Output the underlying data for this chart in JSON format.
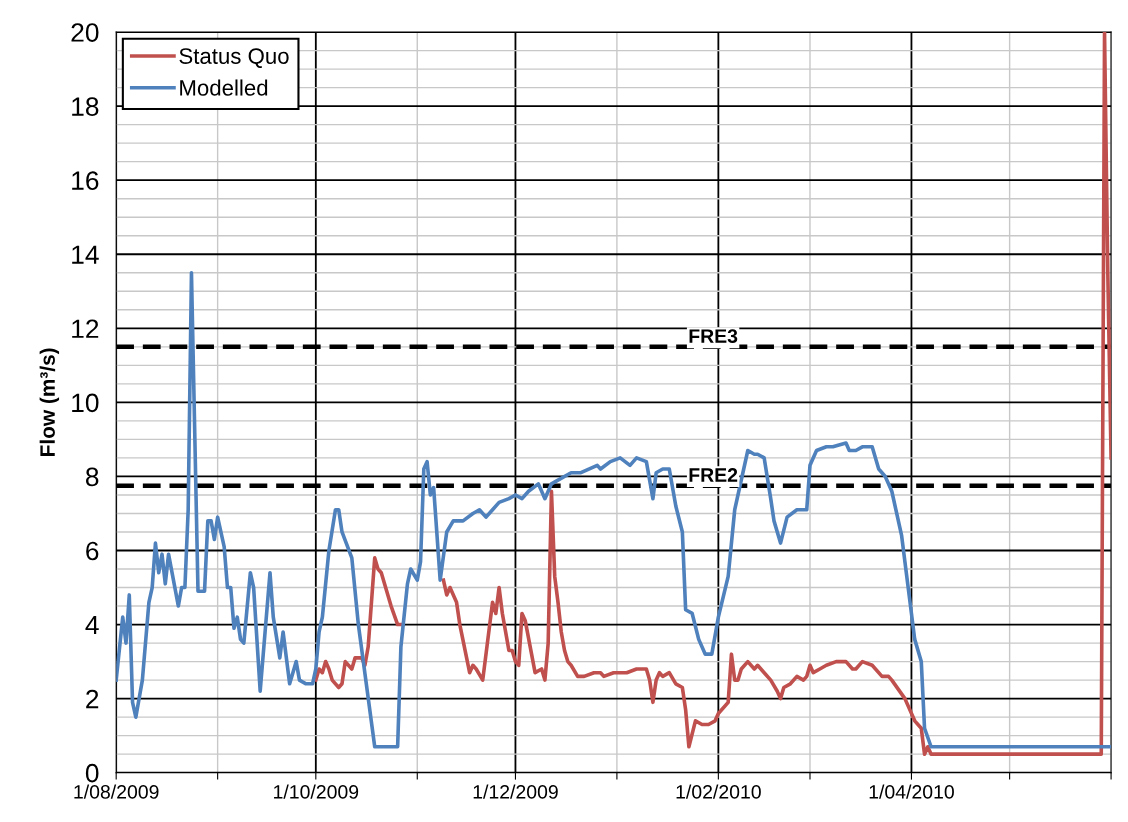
{
  "chart_data": {
    "type": "line",
    "ylabel": "Flow (m³/s)",
    "legend": "top left",
    "grid": true,
    "line_style": "solid",
    "marker": "none",
    "xlim": [
      "2009-08-01",
      "2010-06-01"
    ],
    "xticks": [
      {
        "value": "2009-08-01",
        "label": "1/08/2009"
      },
      {
        "value": "2009-09-01",
        "label": null
      },
      {
        "value": "2009-10-01",
        "label": "1/10/2009"
      },
      {
        "value": "2009-11-01",
        "label": null
      },
      {
        "value": "2009-12-01",
        "label": "1/12/2009"
      },
      {
        "value": "2010-01-01",
        "label": null
      },
      {
        "value": "2010-02-01",
        "label": "1/02/2010"
      },
      {
        "value": "2010-03-01",
        "label": null
      },
      {
        "value": "2010-04-01",
        "label": "1/04/2010"
      },
      {
        "value": "2010-05-01",
        "label": null
      },
      {
        "value": "2010-06-01",
        "label": null
      }
    ],
    "ylim": [
      0,
      20
    ],
    "yticks": [
      0,
      {
        "value": 0.5,
        "label": null
      },
      {
        "value": 1,
        "label": null
      },
      {
        "value": 1.5,
        "label": null
      },
      2,
      {
        "value": 2.5,
        "label": null
      },
      {
        "value": 3,
        "label": null
      },
      {
        "value": 3.5,
        "label": null
      },
      4,
      {
        "value": 4.5,
        "label": null
      },
      {
        "value": 5,
        "label": null
      },
      {
        "value": 5.5,
        "label": null
      },
      6,
      {
        "value": 6.5,
        "label": null
      },
      {
        "value": 7,
        "label": null
      },
      {
        "value": 7.5,
        "label": null
      },
      8,
      {
        "value": 8.5,
        "label": null
      },
      {
        "value": 9,
        "label": null
      },
      {
        "value": 9.5,
        "label": null
      },
      10,
      {
        "value": 10.5,
        "label": null
      },
      {
        "value": 11,
        "label": null
      },
      {
        "value": 11.5,
        "label": null
      },
      12,
      {
        "value": 12.5,
        "label": null
      },
      {
        "value": 13,
        "label": null
      },
      {
        "value": 13.5,
        "label": null
      },
      14,
      {
        "value": 14.5,
        "label": null
      },
      {
        "value": 15,
        "label": null
      },
      {
        "value": 15.5,
        "label": null
      },
      16,
      {
        "value": 16.5,
        "label": null
      },
      {
        "value": 17,
        "label": null
      },
      {
        "value": 17.5,
        "label": null
      },
      18,
      {
        "value": 18.5,
        "label": null
      },
      {
        "value": 19,
        "label": null
      },
      {
        "value": 19.5,
        "label": null
      },
      20
    ],
    "ref_lines": [
      {
        "axis": "y",
        "value": 11.5,
        "label": "FRE3",
        "color": "#000000",
        "line_style": "dashed"
      },
      {
        "axis": "y",
        "value": 7.75,
        "label": "FRE2",
        "color": "#000000",
        "line_style": "dashed"
      }
    ],
    "series": [
      {
        "name": "Status Quo",
        "color": "#c0504d",
        "x": [
          "2009-10-01",
          "2009-10-02",
          "2009-10-03",
          "2009-10-04",
          "2009-10-05",
          "2009-10-06",
          "2009-10-08",
          "2009-10-09",
          "2009-10-10",
          "2009-10-12",
          "2009-10-13",
          "2009-10-15",
          "2009-10-16",
          "2009-10-17",
          "2009-10-19",
          "2009-10-20",
          "2009-10-21",
          "2009-10-24",
          "2009-10-26",
          "2009-10-27",
          "2009-10-28",
          "2009-11-09",
          "2009-11-10",
          "2009-11-11",
          "2009-11-13",
          "2009-11-14",
          "2009-11-17",
          "2009-11-18",
          "2009-11-19",
          "2009-11-21",
          "2009-11-24",
          "2009-11-25",
          "2009-11-26",
          "2009-11-27",
          "2009-11-29",
          "2009-11-30",
          "2009-12-01",
          "2009-12-02",
          "2009-12-03",
          "2009-12-04",
          "2009-12-07",
          "2009-12-09",
          "2009-12-10",
          "2009-12-11",
          "2009-12-12",
          "2009-12-13",
          "2009-12-14",
          "2009-12-15",
          "2009-12-16",
          "2009-12-17",
          "2009-12-18",
          "2009-12-20",
          "2009-12-22",
          "2009-12-25",
          "2009-12-27",
          "2009-12-28",
          "2009-12-31",
          "2010-01-02",
          "2010-01-04",
          "2010-01-07",
          "2010-01-10",
          "2010-01-11",
          "2010-01-12",
          "2010-01-13",
          "2010-01-14",
          "2010-01-15",
          "2010-01-17",
          "2010-01-19",
          "2010-01-21",
          "2010-01-22",
          "2010-01-23",
          "2010-01-25",
          "2010-01-27",
          "2010-01-29",
          "2010-01-31",
          "2010-02-01",
          "2010-02-04",
          "2010-02-05",
          "2010-02-06",
          "2010-02-07",
          "2010-02-08",
          "2010-02-10",
          "2010-02-12",
          "2010-02-13",
          "2010-02-15",
          "2010-02-17",
          "2010-02-19",
          "2010-02-20",
          "2010-02-21",
          "2010-02-23",
          "2010-02-25",
          "2010-02-27",
          "2010-02-28",
          "2010-03-01",
          "2010-03-02",
          "2010-03-04",
          "2010-03-06",
          "2010-03-09",
          "2010-03-12",
          "2010-03-14",
          "2010-03-15",
          "2010-03-17",
          "2010-03-20",
          "2010-03-23",
          "2010-03-25",
          "2010-03-26",
          "2010-03-30",
          "2010-04-02",
          "2010-04-04",
          "2010-04-05",
          "2010-04-06",
          "2010-04-07",
          "2010-05-29",
          "2010-05-30",
          "2010-05-31",
          "2010-06-01"
        ],
        "values": [
          2.5,
          2.8,
          2.7,
          3.0,
          2.8,
          2.5,
          2.3,
          2.4,
          3.0,
          2.8,
          3.1,
          3.1,
          2.9,
          3.4,
          5.8,
          5.5,
          5.4,
          4.5,
          4.0,
          4.0,
          null,
          5.2,
          4.8,
          5.0,
          4.6,
          4.0,
          2.7,
          2.9,
          2.8,
          2.5,
          4.6,
          4.3,
          5.0,
          4.3,
          3.3,
          3.3,
          3.0,
          2.9,
          4.3,
          4.1,
          2.7,
          2.8,
          2.5,
          3.5,
          7.6,
          5.3,
          4.6,
          3.8,
          3.3,
          3.0,
          2.9,
          2.6,
          2.6,
          2.7,
          2.7,
          2.6,
          2.7,
          2.7,
          2.7,
          2.8,
          2.8,
          2.5,
          1.9,
          2.5,
          2.7,
          2.6,
          2.7,
          2.4,
          2.3,
          1.7,
          0.7,
          1.4,
          1.3,
          1.3,
          1.4,
          1.6,
          1.9,
          3.2,
          2.5,
          2.5,
          2.8,
          3.0,
          2.8,
          2.9,
          2.7,
          2.5,
          2.2,
          2.0,
          2.3,
          2.4,
          2.6,
          2.5,
          2.6,
          2.9,
          2.7,
          2.8,
          2.9,
          3.0,
          3.0,
          2.8,
          2.8,
          3.0,
          2.9,
          2.6,
          2.6,
          2.5,
          2.0,
          1.4,
          1.2,
          0.5,
          0.7,
          0.5,
          0.5,
          20,
          13.5,
          8.5
        ]
      },
      {
        "name": "Modelled",
        "color": "#4f81bd",
        "x": [
          "2009-08-01",
          "2009-08-03",
          "2009-08-04",
          "2009-08-05",
          "2009-08-06",
          "2009-08-07",
          "2009-08-09",
          "2009-08-11",
          "2009-08-12",
          "2009-08-13",
          "2009-08-14",
          "2009-08-15",
          "2009-08-16",
          "2009-08-17",
          "2009-08-20",
          "2009-08-21",
          "2009-08-22",
          "2009-08-23",
          "2009-08-24",
          "2009-08-26",
          "2009-08-28",
          "2009-08-29",
          "2009-08-30",
          "2009-08-31",
          "2009-09-01",
          "2009-09-03",
          "2009-09-04",
          "2009-09-05",
          "2009-09-06",
          "2009-09-07",
          "2009-09-08",
          "2009-09-09",
          "2009-09-11",
          "2009-09-12",
          "2009-09-14",
          "2009-09-17",
          "2009-09-18",
          "2009-09-20",
          "2009-09-21",
          "2009-09-23",
          "2009-09-24",
          "2009-09-25",
          "2009-09-26",
          "2009-09-28",
          "2009-09-30",
          "2009-10-01",
          "2009-10-02",
          "2009-10-03",
          "2009-10-05",
          "2009-10-07",
          "2009-10-08",
          "2009-10-09",
          "2009-10-12",
          "2009-10-14",
          "2009-10-19",
          "2009-10-26",
          "2009-10-27",
          "2009-10-29",
          "2009-10-30",
          "2009-11-01",
          "2009-11-02",
          "2009-11-03",
          "2009-11-04",
          "2009-11-05",
          "2009-11-06",
          "2009-11-08",
          "2009-11-10",
          "2009-11-12",
          "2009-11-15",
          "2009-11-18",
          "2009-11-20",
          "2009-11-22",
          "2009-11-24",
          "2009-11-26",
          "2009-11-29",
          "2009-12-01",
          "2009-12-03",
          "2009-12-05",
          "2009-12-08",
          "2009-12-10",
          "2009-12-12",
          "2009-12-14",
          "2009-12-18",
          "2009-12-21",
          "2009-12-26",
          "2009-12-27",
          "2009-12-30",
          "2010-01-02",
          "2010-01-05",
          "2010-01-07",
          "2010-01-10",
          "2010-01-11",
          "2010-01-12",
          "2010-01-13",
          "2010-01-15",
          "2010-01-17",
          "2010-01-19",
          "2010-01-21",
          "2010-01-22",
          "2010-01-24",
          "2010-01-26",
          "2010-01-28",
          "2010-01-30",
          "2010-02-01",
          "2010-02-04",
          "2010-02-06",
          "2010-02-10",
          "2010-02-12",
          "2010-02-13",
          "2010-02-15",
          "2010-02-17",
          "2010-02-18",
          "2010-02-20",
          "2010-02-22",
          "2010-02-25",
          "2010-02-27",
          "2010-02-28",
          "2010-03-01",
          "2010-03-03",
          "2010-03-06",
          "2010-03-08",
          "2010-03-12",
          "2010-03-13",
          "2010-03-15",
          "2010-03-17",
          "2010-03-20",
          "2010-03-22",
          "2010-03-24",
          "2010-03-26",
          "2010-03-29",
          "2010-04-02",
          "2010-04-04",
          "2010-04-05",
          "2010-04-07",
          "2010-06-01"
        ],
        "values": [
          2.5,
          4.2,
          3.5,
          4.8,
          1.9,
          1.5,
          2.5,
          4.6,
          5.0,
          6.2,
          5.4,
          5.9,
          5.1,
          5.9,
          4.5,
          5.0,
          5.0,
          7.1,
          13.5,
          4.9,
          4.9,
          6.8,
          6.8,
          6.3,
          6.9,
          6.1,
          5.0,
          5.0,
          3.9,
          4.2,
          3.6,
          3.5,
          5.4,
          5.0,
          2.2,
          5.4,
          4.2,
          3.1,
          3.8,
          2.4,
          2.7,
          3.0,
          2.5,
          2.4,
          2.4,
          2.8,
          3.8,
          4.2,
          6.0,
          7.1,
          7.1,
          6.5,
          5.8,
          4.0,
          0.7,
          0.7,
          3.4,
          5.1,
          5.5,
          5.2,
          5.7,
          8.2,
          8.4,
          7.5,
          7.7,
          5.2,
          6.5,
          6.8,
          6.8,
          7.0,
          7.1,
          6.9,
          7.1,
          7.3,
          7.4,
          7.5,
          7.4,
          7.6,
          7.8,
          7.4,
          7.8,
          7.9,
          8.1,
          8.1,
          8.3,
          8.2,
          8.4,
          8.5,
          8.3,
          8.5,
          8.4,
          7.9,
          7.4,
          8.1,
          8.2,
          8.2,
          7.2,
          6.5,
          4.4,
          4.3,
          3.6,
          3.2,
          3.2,
          4.2,
          5.3,
          7.1,
          8.7,
          8.6,
          8.6,
          8.5,
          7.4,
          6.8,
          6.2,
          6.9,
          7.1,
          7.1,
          7.1,
          8.3,
          8.7,
          8.8,
          8.8,
          8.9,
          8.7,
          8.7,
          8.8,
          8.8,
          8.2,
          8.0,
          7.6,
          6.4,
          3.6,
          3.0,
          1.2,
          0.7,
          0.7
        ]
      }
    ]
  }
}
